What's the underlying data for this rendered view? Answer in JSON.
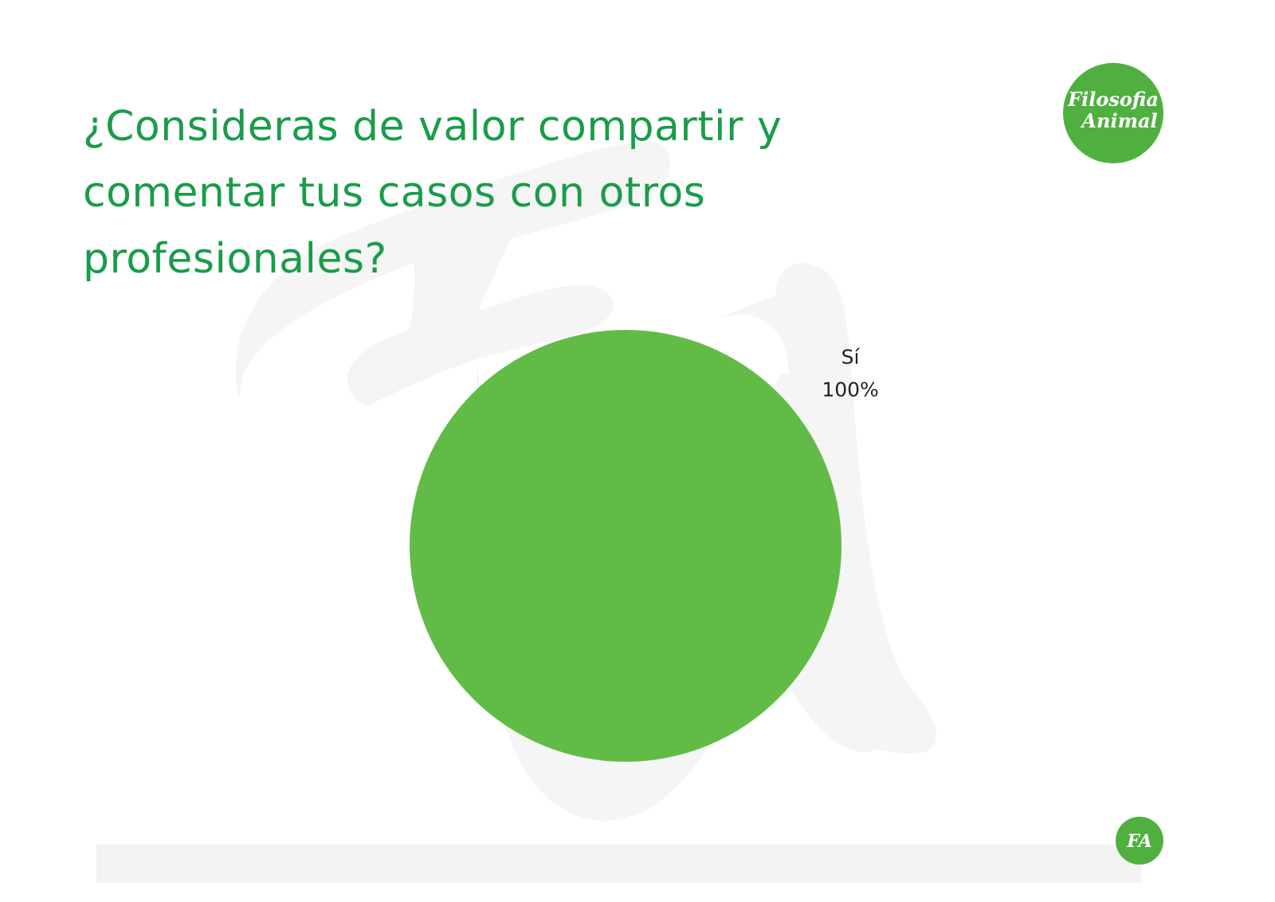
{
  "chart_data": {
    "type": "pie",
    "title": "¿Consideras de valor compartir y comentar tus casos con otros profesionales?",
    "categories": [
      "Sí"
    ],
    "values": [
      100
    ],
    "value_labels": [
      "100%"
    ],
    "colors": [
      "#62bb46"
    ]
  },
  "logo": {
    "lines": [
      "Filosofia",
      "Animal"
    ]
  },
  "footer_logo": "FA"
}
